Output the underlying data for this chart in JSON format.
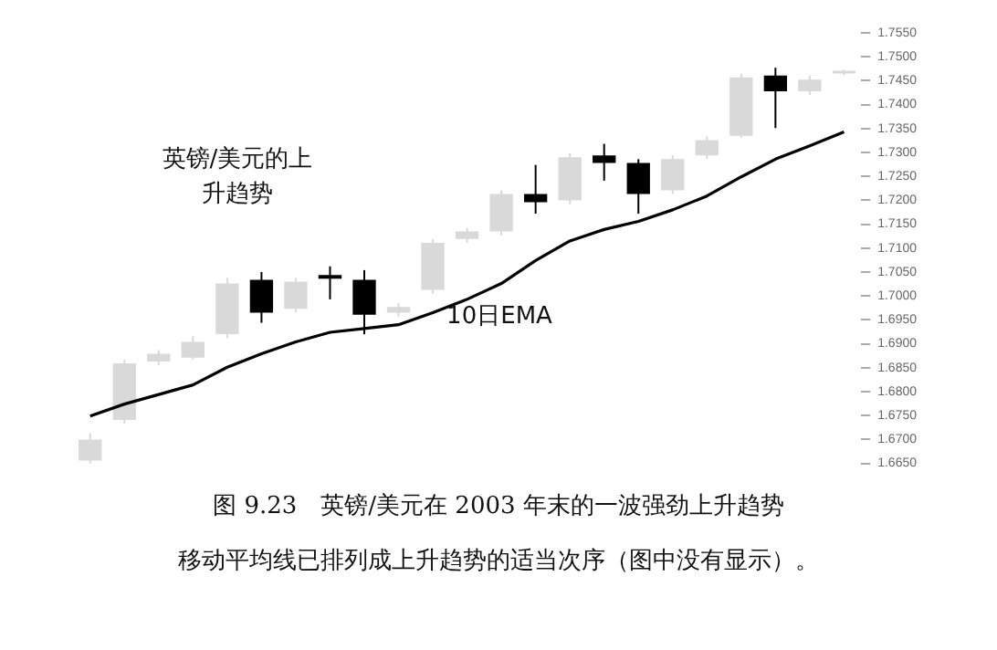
{
  "chart_data": {
    "type": "candlestick",
    "title": "图 9.23　英镑/美元在 2003 年末的一波强劲上升趋势",
    "subtitle": "移动平均线已排列成上升趋势的适当次序（图中没有显示）。",
    "categories": [
      null,
      null,
      null,
      null,
      null,
      null,
      null,
      null,
      null,
      null,
      null,
      null,
      null,
      null,
      null,
      null,
      null,
      null,
      null,
      null,
      null,
      null,
      null
    ],
    "ohlc": [
      [
        1.6656,
        1.6713,
        1.665,
        1.67
      ],
      [
        1.6741,
        1.6867,
        1.6733,
        1.6859
      ],
      [
        1.6863,
        1.6887,
        1.6855,
        1.6879
      ],
      [
        1.6871,
        1.6916,
        1.6867,
        1.6904
      ],
      [
        1.692,
        1.7038,
        1.6912,
        1.7026
      ],
      [
        1.7034,
        1.705,
        1.6944,
        1.6965
      ],
      [
        1.6973,
        1.7038,
        1.6965,
        1.703
      ],
      [
        1.7038,
        1.7062,
        1.6993,
        1.7038
      ],
      [
        1.7034,
        1.7054,
        1.692,
        1.6961
      ],
      [
        1.6965,
        1.6985,
        1.6957,
        1.6977
      ],
      [
        1.7013,
        1.7119,
        1.7005,
        1.7111
      ],
      [
        1.7119,
        1.7143,
        1.7111,
        1.7135
      ],
      [
        1.7135,
        1.7221,
        1.7127,
        1.7213
      ],
      [
        1.7213,
        1.7274,
        1.7172,
        1.7196
      ],
      [
        1.72,
        1.7298,
        1.7192,
        1.729
      ],
      [
        1.7294,
        1.7318,
        1.7241,
        1.7278
      ],
      [
        1.7278,
        1.7286,
        1.7172,
        1.7213
      ],
      [
        1.7221,
        1.7294,
        1.7213,
        1.7286
      ],
      [
        1.7294,
        1.7334,
        1.7286,
        1.7326
      ],
      [
        1.7335,
        1.7465,
        1.7331,
        1.7457
      ],
      [
        1.7461,
        1.7477,
        1.7351,
        1.7428
      ],
      [
        1.7428,
        1.7461,
        1.742,
        1.7452
      ],
      [
        1.7465,
        1.7473,
        1.7461,
        1.7469
      ]
    ],
    "colors": [
      "#d9d9d9",
      "#d9d9d9",
      "#d9d9d9",
      "#d9d9d9",
      "#d9d9d9",
      "#000000",
      "#d9d9d9",
      "#000000",
      "#000000",
      "#d9d9d9",
      "#d9d9d9",
      "#d9d9d9",
      "#d9d9d9",
      "#000000",
      "#d9d9d9",
      "#000000",
      "#000000",
      "#d9d9d9",
      "#d9d9d9",
      "#d9d9d9",
      "#000000",
      "#d9d9d9",
      "#d9d9d9"
    ],
    "series": [
      {
        "name": "10日EMA",
        "type": "line",
        "color": "#000000",
        "values": [
          1.6749,
          1.6774,
          1.6794,
          1.6814,
          1.6851,
          1.6879,
          1.6904,
          1.6924,
          1.6932,
          1.694,
          1.6965,
          1.6993,
          1.7026,
          1.7074,
          1.7115,
          1.7139,
          1.7156,
          1.718,
          1.7209,
          1.7249,
          1.7286,
          1.7314,
          1.7343
        ]
      }
    ],
    "ylim": [
      1.665,
      1.755
    ],
    "yticks": [
      {
        "value": 1.665,
        "label": "1.6650"
      },
      {
        "value": 1.67,
        "label": "1.6700"
      },
      {
        "value": 1.675,
        "label": "1.6750"
      },
      {
        "value": 1.68,
        "label": "1.6800"
      },
      {
        "value": 1.685,
        "label": "1.6850"
      },
      {
        "value": 1.69,
        "label": "1.6900"
      },
      {
        "value": 1.695,
        "label": "1.6950"
      },
      {
        "value": 1.7,
        "label": "1.7000"
      },
      {
        "value": 1.705,
        "label": "1.7050"
      },
      {
        "value": 1.71,
        "label": "1.7100"
      },
      {
        "value": 1.715,
        "label": "1.7150"
      },
      {
        "value": 1.72,
        "label": "1.7200"
      },
      {
        "value": 1.725,
        "label": "1.7250"
      },
      {
        "value": 1.73,
        "label": "1.7300"
      },
      {
        "value": 1.735,
        "label": "1.7350"
      },
      {
        "value": 1.74,
        "label": "1.7400"
      },
      {
        "value": 1.745,
        "label": "1.7450"
      },
      {
        "value": 1.75,
        "label": "1.7500"
      },
      {
        "value": 1.755,
        "label": "1.7550"
      }
    ],
    "grid": false,
    "legend": false,
    "marker": "none",
    "line_style": "solid",
    "annotations": [
      "英镑/美元的上升趋势"
    ]
  }
}
